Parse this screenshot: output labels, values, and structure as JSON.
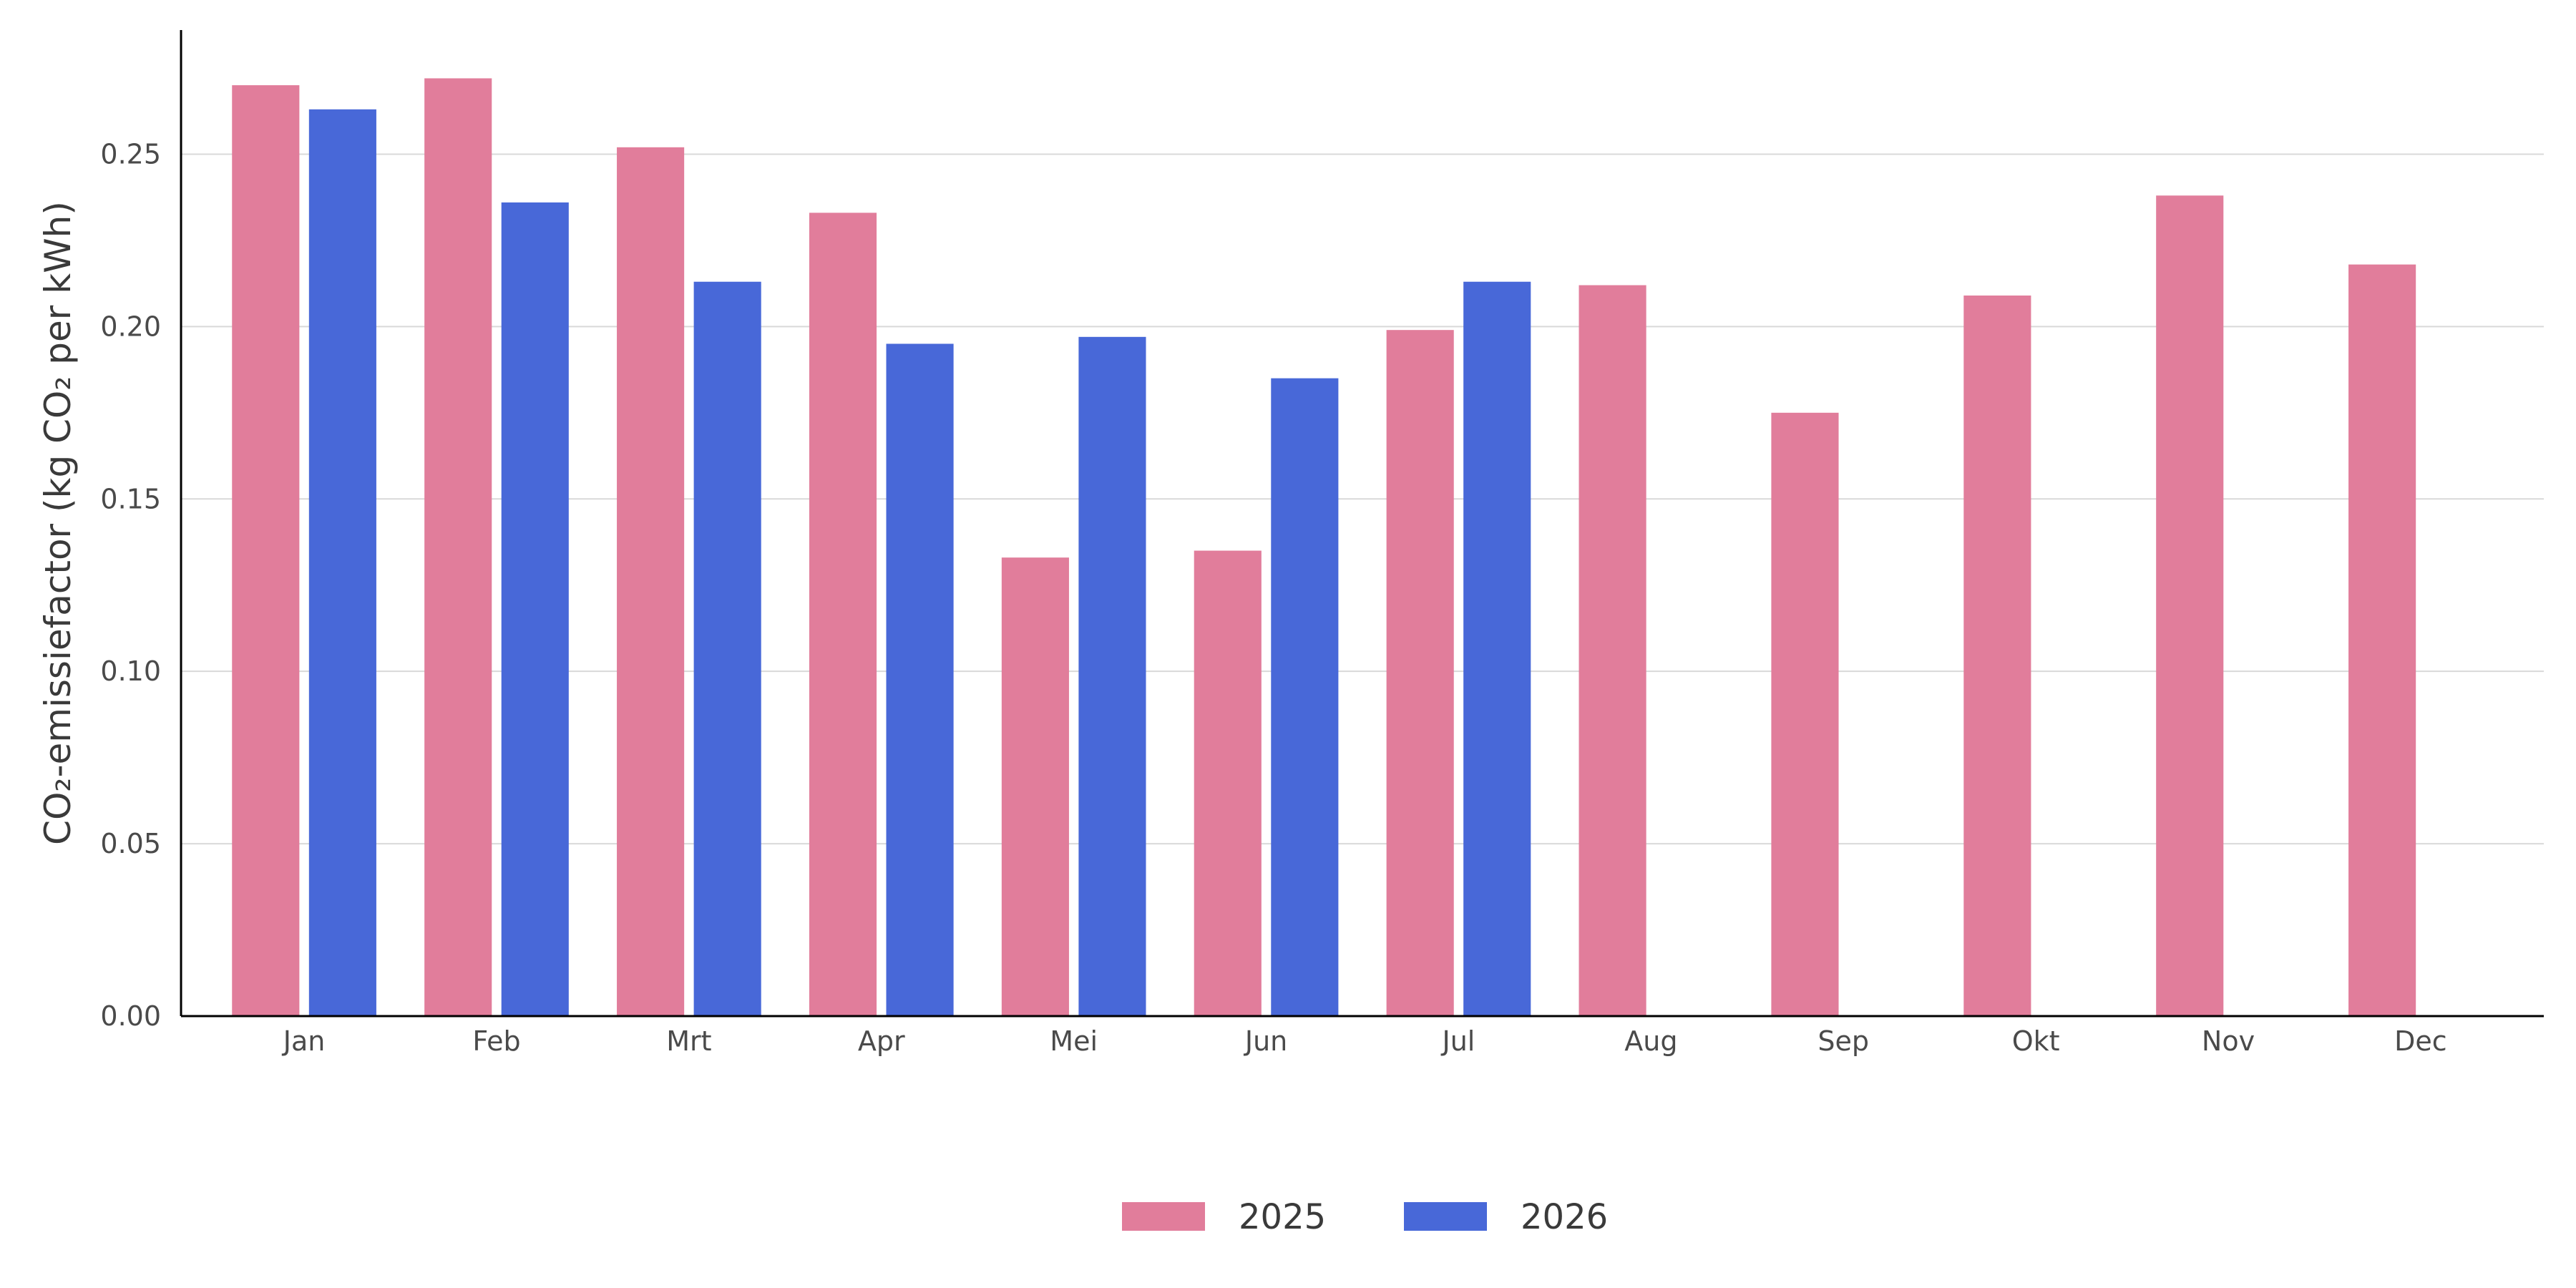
{
  "chart_data": {
    "type": "bar",
    "title": "",
    "xlabel": "",
    "ylabel": "CO₂-emissiefactor (kg CO₂ per kWh)",
    "categories": [
      "Jan",
      "Feb",
      "Mrt",
      "Apr",
      "Mei",
      "Jun",
      "Jul",
      "Aug",
      "Sep",
      "Okt",
      "Nov",
      "Dec"
    ],
    "series": [
      {
        "name": "2025",
        "color": "#e17d9b",
        "values": [
          0.27,
          0.272,
          0.252,
          0.233,
          0.133,
          0.135,
          0.199,
          0.212,
          0.175,
          0.209,
          0.238,
          0.218
        ]
      },
      {
        "name": "2026",
        "color": "#4868d8",
        "values": [
          0.263,
          0.236,
          0.213,
          0.195,
          0.197,
          0.185,
          0.213,
          null,
          null,
          null,
          null,
          null
        ]
      }
    ],
    "ylim": [
      0,
      0.286
    ],
    "yticks": [
      "0.00",
      "0.05",
      "0.10",
      "0.15",
      "0.20",
      "0.25"
    ],
    "grid": "horizontal",
    "legend_position": "bottom-center"
  }
}
